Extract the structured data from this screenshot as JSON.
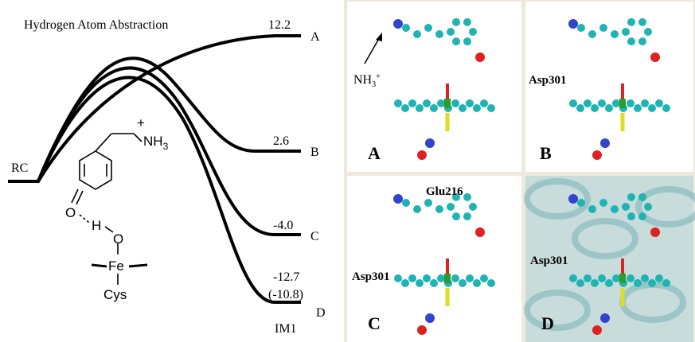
{
  "left_panel": {
    "title": "Hydrogen Atom Abstraction",
    "start_label": "RC",
    "end_label": "IM1",
    "paths": [
      {
        "energy": "12.2",
        "label": "A"
      },
      {
        "energy": "2.6",
        "label": "B"
      },
      {
        "energy": "-4.0",
        "label": "C"
      },
      {
        "energy": "-12.7",
        "energy_alt": "(-10.8)",
        "label": "D"
      }
    ],
    "structure": {
      "charge": "+",
      "amine": "NH",
      "amine_sub": "3",
      "ketone_o": "O",
      "hydrogen": "H",
      "oxo": "O",
      "metal": "Fe",
      "ligand": "Cys"
    }
  },
  "right_panels": [
    {
      "label": "A",
      "annotation": "NH",
      "annotation_sub": "3",
      "annotation_sup": "+"
    },
    {
      "label": "B",
      "residues": [
        "Asp301"
      ]
    },
    {
      "label": "C",
      "residues": [
        "Glu216",
        "Asp301"
      ]
    },
    {
      "label": "D",
      "residues": [
        "Asp301"
      ]
    }
  ]
}
